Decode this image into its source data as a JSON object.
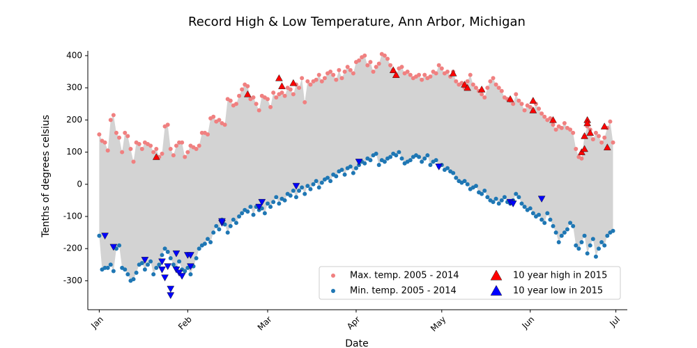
{
  "chart_data": {
    "type": "scatter",
    "title": "Record High & Low Temperature, Ann Arbor, Michigan",
    "xlabel": "Date",
    "ylabel": "Tenths of degrees celsius",
    "xlim": [
      -4,
      185
    ],
    "ylim": [
      -390,
      415
    ],
    "xticks": [
      {
        "value": 0,
        "label": "Jan"
      },
      {
        "value": 31,
        "label": "Feb"
      },
      {
        "value": 59,
        "label": "Mar"
      },
      {
        "value": 90,
        "label": "Apr"
      },
      {
        "value": 120,
        "label": "May"
      },
      {
        "value": 151,
        "label": "Jun"
      },
      {
        "value": 181,
        "label": "Jul"
      }
    ],
    "yticks": [
      -300,
      -200,
      -100,
      0,
      100,
      200,
      300,
      400
    ],
    "legend": "lower right",
    "fill_between": "#d3d3d3",
    "x": [
      0,
      1,
      2,
      3,
      4,
      5,
      6,
      7,
      8,
      9,
      10,
      11,
      12,
      13,
      14,
      15,
      16,
      17,
      18,
      19,
      20,
      21,
      22,
      23,
      24,
      25,
      26,
      27,
      28,
      29,
      30,
      31,
      32,
      33,
      34,
      35,
      36,
      37,
      38,
      39,
      40,
      41,
      42,
      43,
      44,
      45,
      46,
      47,
      48,
      49,
      50,
      51,
      52,
      53,
      54,
      55,
      56,
      57,
      58,
      59,
      60,
      61,
      62,
      63,
      64,
      65,
      66,
      67,
      68,
      69,
      70,
      71,
      72,
      73,
      74,
      75,
      76,
      77,
      78,
      79,
      80,
      81,
      82,
      83,
      84,
      85,
      86,
      87,
      88,
      89,
      90,
      91,
      92,
      93,
      94,
      95,
      96,
      97,
      98,
      99,
      100,
      101,
      102,
      103,
      104,
      105,
      106,
      107,
      108,
      109,
      110,
      111,
      112,
      113,
      114,
      115,
      116,
      117,
      118,
      119,
      120,
      121,
      122,
      123,
      124,
      125,
      126,
      127,
      128,
      129,
      130,
      131,
      132,
      133,
      134,
      135,
      136,
      137,
      138,
      139,
      140,
      141,
      142,
      143,
      144,
      145,
      146,
      147,
      148,
      149,
      150,
      151,
      152,
      153,
      154,
      155,
      156,
      157,
      158,
      159,
      160,
      161,
      162,
      163,
      164,
      165,
      166,
      167,
      168,
      169,
      170,
      171,
      172,
      173,
      174,
      175,
      176,
      177,
      178,
      179,
      180
    ],
    "series": [
      {
        "name": "Max. temp. 2005 - 2014",
        "color": "#f08080",
        "marker": "o",
        "values": [
          155,
          135,
          130,
          105,
          200,
          215,
          160,
          145,
          100,
          160,
          150,
          110,
          70,
          130,
          125,
          110,
          130,
          125,
          120,
          100,
          110,
          85,
          95,
          180,
          185,
          110,
          90,
          120,
          130,
          130,
          85,
          100,
          120,
          115,
          110,
          120,
          160,
          160,
          155,
          205,
          210,
          195,
          200,
          190,
          185,
          265,
          260,
          245,
          250,
          275,
          295,
          310,
          305,
          265,
          270,
          250,
          230,
          275,
          270,
          265,
          240,
          285,
          270,
          280,
          285,
          275,
          300,
          295,
          280,
          310,
          300,
          330,
          255,
          320,
          310,
          320,
          325,
          340,
          320,
          330,
          345,
          350,
          340,
          325,
          355,
          330,
          350,
          365,
          355,
          345,
          380,
          385,
          395,
          400,
          370,
          380,
          350,
          365,
          375,
          405,
          400,
          390,
          370,
          355,
          340,
          360,
          365,
          345,
          350,
          340,
          330,
          335,
          340,
          325,
          340,
          330,
          335,
          350,
          345,
          370,
          360,
          345,
          350,
          335,
          350,
          320,
          310,
          315,
          300,
          320,
          340,
          310,
          300,
          290,
          280,
          270,
          300,
          320,
          330,
          310,
          300,
          290,
          270,
          265,
          260,
          250,
          280,
          260,
          250,
          230,
          245,
          240,
          230,
          250,
          235,
          220,
          210,
          200,
          205,
          185,
          170,
          180,
          175,
          190,
          175,
          170,
          160,
          110,
          85,
          80,
          150,
          180,
          170,
          140,
          160,
          150,
          130,
          145,
          175,
          195,
          130
        ]
      },
      {
        "name": "Min. temp. 2005 - 2014",
        "color": "#1f77b4",
        "marker": "o",
        "values": [
          -160,
          -265,
          -260,
          -260,
          -250,
          -270,
          -200,
          -190,
          -260,
          -265,
          -280,
          -300,
          -295,
          -275,
          -250,
          -245,
          -265,
          -250,
          -240,
          -280,
          -260,
          -250,
          -220,
          -200,
          -210,
          -230,
          -250,
          -260,
          -240,
          -265,
          -270,
          -260,
          -280,
          -255,
          -230,
          -200,
          -190,
          -185,
          -170,
          -180,
          -150,
          -130,
          -140,
          -110,
          -125,
          -150,
          -130,
          -110,
          -120,
          -100,
          -90,
          -80,
          -85,
          -70,
          -95,
          -70,
          -80,
          -75,
          -90,
          -60,
          -70,
          -55,
          -40,
          -60,
          -45,
          -50,
          -30,
          -35,
          -20,
          -40,
          -20,
          -10,
          -30,
          -5,
          -15,
          0,
          10,
          -10,
          5,
          15,
          20,
          10,
          30,
          25,
          40,
          45,
          30,
          50,
          55,
          35,
          50,
          60,
          70,
          65,
          80,
          75,
          90,
          95,
          60,
          75,
          70,
          80,
          85,
          95,
          90,
          100,
          80,
          65,
          70,
          75,
          85,
          90,
          85,
          70,
          80,
          90,
          60,
          70,
          75,
          55,
          60,
          45,
          50,
          40,
          35,
          20,
          10,
          5,
          10,
          0,
          -15,
          -10,
          -5,
          -25,
          -30,
          -20,
          -40,
          -50,
          -55,
          -45,
          -60,
          -50,
          -40,
          -55,
          -60,
          -50,
          -30,
          -40,
          -60,
          -70,
          -80,
          -75,
          -90,
          -100,
          -95,
          -110,
          -120,
          -90,
          -110,
          -130,
          -150,
          -180,
          -160,
          -150,
          -140,
          -120,
          -130,
          -190,
          -200,
          -180,
          -160,
          -215,
          -190,
          -170,
          -225,
          -200,
          -180,
          -190,
          -160,
          -150,
          -145
        ]
      },
      {
        "name": "10 year high in 2015",
        "color": "#ff0000",
        "marker": "^",
        "x": [
          20,
          52,
          63,
          64,
          68,
          103,
          104,
          124,
          128,
          129,
          134,
          144,
          152,
          152,
          159,
          169,
          170,
          170,
          171,
          171,
          172,
          177,
          178
        ],
        "values": [
          85,
          280,
          330,
          305,
          315,
          355,
          340,
          345,
          310,
          300,
          295,
          265,
          260,
          230,
          200,
          100,
          110,
          150,
          200,
          190,
          160,
          180,
          115
        ]
      },
      {
        "name": "10 year low in 2015",
        "color": "#0000ff",
        "marker": "v",
        "x": [
          2,
          5,
          16,
          22,
          22,
          23,
          24,
          25,
          25,
          27,
          27,
          28,
          29,
          31,
          32,
          32,
          43,
          43,
          56,
          57,
          69,
          91,
          119,
          144,
          145,
          155
        ],
        "values": [
          -160,
          -195,
          -235,
          -240,
          -265,
          -290,
          -255,
          -345,
          -325,
          -265,
          -215,
          -275,
          -285,
          -220,
          -255,
          -220,
          -120,
          -115,
          -70,
          -55,
          -5,
          70,
          55,
          -55,
          -60,
          -45
        ]
      }
    ]
  }
}
